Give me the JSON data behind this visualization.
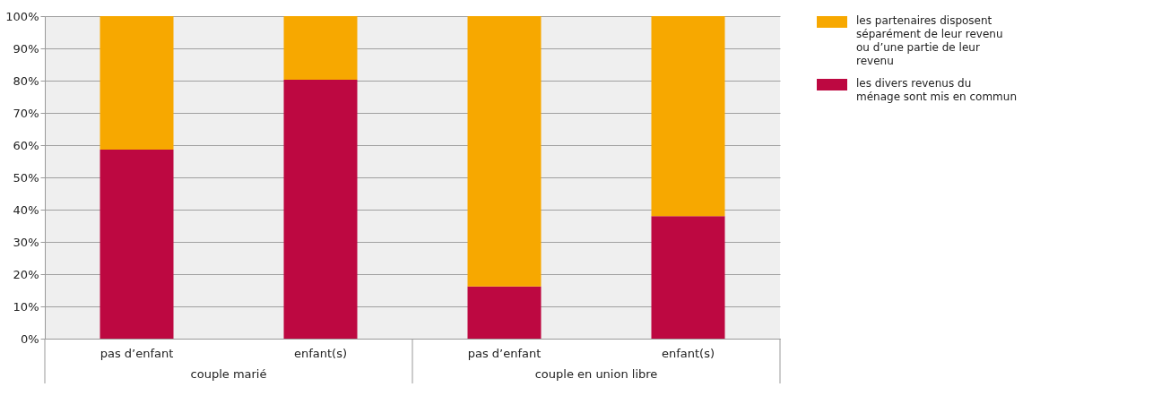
{
  "chart_data": {
    "type": "bar",
    "stacked": true,
    "categories": [
      "pas d’enfant",
      "enfant(s)",
      "pas d’enfant",
      "enfant(s)"
    ],
    "series": [
      {
        "name": "les divers revenus du ménage sont mis en commun",
        "color": "#bd0841",
        "values": [
          58.6,
          80.3,
          16.2,
          38.0
        ]
      },
      {
        "name": "les partenaires disposent séparément de leur revenu ou d’une partie de leur revenu",
        "color": "#f7a800",
        "values": [
          41.4,
          19.7,
          83.8,
          62.0
        ]
      }
    ],
    "ylim": [
      0,
      100
    ],
    "yticks": [
      {
        "value": 0,
        "label": "0%"
      },
      {
        "value": 10,
        "label": "10%"
      },
      {
        "value": 20,
        "label": "20%"
      },
      {
        "value": 30,
        "label": "30%"
      },
      {
        "value": 40,
        "label": "40%"
      },
      {
        "value": 50,
        "label": "50%"
      },
      {
        "value": 60,
        "label": "60%"
      },
      {
        "value": 70,
        "label": "70%"
      },
      {
        "value": 80,
        "label": "80%"
      },
      {
        "value": 90,
        "label": "90%"
      },
      {
        "value": 100,
        "label": "100%"
      }
    ],
    "grid": "y",
    "legend": "right",
    "annotations": [
      "couple marié",
      "couple en union libre"
    ]
  }
}
